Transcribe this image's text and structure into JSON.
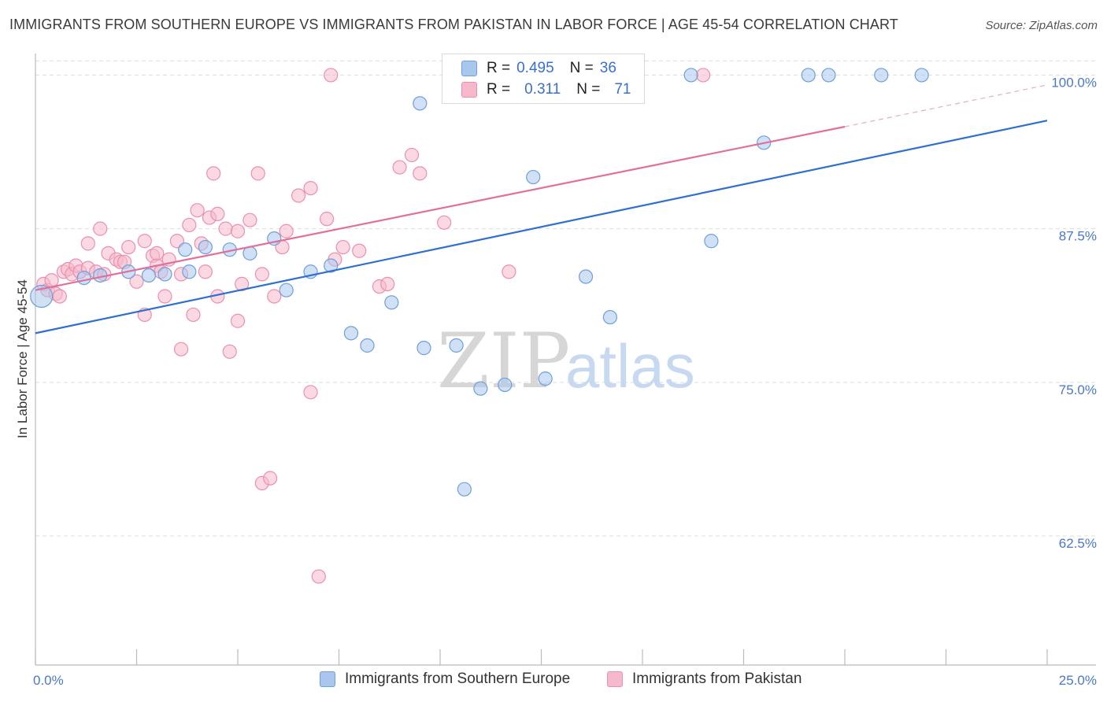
{
  "title": "IMMIGRANTS FROM SOUTHERN EUROPE VS IMMIGRANTS FROM PAKISTAN IN LABOR FORCE | AGE 45-54 CORRELATION CHART",
  "source": "Source: ZipAtlas.com",
  "watermark": {
    "zip": "ZIP",
    "atlas": "atlas"
  },
  "legend": {
    "rows": [
      {
        "r_label": "R =",
        "r_value": "0.495",
        "n_label": "N =",
        "n_value": "36"
      },
      {
        "r_label": "R =",
        "r_value": "0.311",
        "n_label": "N =",
        "n_value": "71"
      }
    ]
  },
  "colors": {
    "blue_fill": "#a9c6ec",
    "blue_stroke": "#6f9fdc",
    "blue_line": "#2f6fce",
    "pink_fill": "#f6b9cc",
    "pink_stroke": "#ec8fae",
    "pink_line": "#e0709a",
    "tick_text": "#4a78c8",
    "grid": "#dddddd"
  },
  "chart_data": {
    "type": "scatter",
    "title": "IMMIGRANTS FROM SOUTHERN EUROPE VS IMMIGRANTS FROM PAKISTAN IN LABOR FORCE | AGE 45-54 CORRELATION CHART",
    "xlabel": "",
    "ylabel": "In Labor Force | Age 45-54",
    "xlim": [
      0,
      25
    ],
    "ylim": [
      52,
      101.5
    ],
    "x_tick_labels": [
      "0.0%",
      "25.0%"
    ],
    "y_ticks": [
      62.5,
      75.0,
      87.5,
      100.0
    ],
    "y_tick_labels": [
      "62.5%",
      "75.0%",
      "87.5%",
      "100.0%"
    ],
    "grid": true,
    "legend_position": "bottom",
    "series": [
      {
        "name": "Immigrants from Southern Europe",
        "color": "blue",
        "r": 0.495,
        "n": 36,
        "trend": {
          "x": [
            0,
            25
          ],
          "y": [
            79.0,
            96.3
          ]
        },
        "points": [
          [
            0.15,
            82.0
          ],
          [
            1.2,
            83.5
          ],
          [
            1.6,
            83.7
          ],
          [
            2.3,
            84.0
          ],
          [
            2.8,
            83.7
          ],
          [
            3.2,
            83.8
          ],
          [
            3.8,
            84.0
          ],
          [
            3.7,
            85.8
          ],
          [
            4.2,
            86.0
          ],
          [
            4.8,
            85.8
          ],
          [
            5.3,
            85.5
          ],
          [
            5.9,
            86.7
          ],
          [
            6.2,
            82.5
          ],
          [
            6.8,
            84.0
          ],
          [
            7.3,
            84.5
          ],
          [
            7.8,
            79.0
          ],
          [
            8.2,
            78.0
          ],
          [
            8.8,
            81.5
          ],
          [
            9.6,
            77.8
          ],
          [
            10.4,
            78.0
          ],
          [
            11.0,
            74.5
          ],
          [
            11.6,
            74.8
          ],
          [
            12.6,
            75.3
          ],
          [
            10.6,
            66.3
          ],
          [
            9.5,
            97.7
          ],
          [
            12.3,
            91.7
          ],
          [
            13.6,
            83.6
          ],
          [
            14.2,
            80.3
          ],
          [
            14.2,
            100.0
          ],
          [
            16.2,
            100.0
          ],
          [
            16.7,
            86.5
          ],
          [
            18.0,
            94.5
          ],
          [
            19.1,
            100.0
          ],
          [
            19.6,
            100.0
          ],
          [
            20.9,
            100.0
          ],
          [
            21.9,
            100.0
          ]
        ]
      },
      {
        "name": "Immigrants from Pakistan",
        "color": "pink",
        "r": 0.311,
        "n": 71,
        "trend": {
          "x": [
            0,
            20
          ],
          "y": [
            82.5,
            95.8
          ]
        },
        "trend_extension": {
          "x": [
            20,
            25
          ],
          "y": [
            95.8,
            99.2
          ]
        },
        "points": [
          [
            0.2,
            83.0
          ],
          [
            0.3,
            82.5
          ],
          [
            0.5,
            82.2
          ],
          [
            0.7,
            84.0
          ],
          [
            0.8,
            84.2
          ],
          [
            0.9,
            83.8
          ],
          [
            1.0,
            84.5
          ],
          [
            1.1,
            84.0
          ],
          [
            1.3,
            84.3
          ],
          [
            1.5,
            84.0
          ],
          [
            1.7,
            83.8
          ],
          [
            1.8,
            85.5
          ],
          [
            2.0,
            85.0
          ],
          [
            2.1,
            84.8
          ],
          [
            2.3,
            86.0
          ],
          [
            2.5,
            83.2
          ],
          [
            2.7,
            86.5
          ],
          [
            2.9,
            85.3
          ],
          [
            3.0,
            84.5
          ],
          [
            3.1,
            84.0
          ],
          [
            3.3,
            85.0
          ],
          [
            3.5,
            86.5
          ],
          [
            3.6,
            83.8
          ],
          [
            3.8,
            87.8
          ],
          [
            4.0,
            89.0
          ],
          [
            4.1,
            86.3
          ],
          [
            4.3,
            88.4
          ],
          [
            4.5,
            88.7
          ],
          [
            4.7,
            87.5
          ],
          [
            5.0,
            87.3
          ],
          [
            5.3,
            88.2
          ],
          [
            5.6,
            83.8
          ],
          [
            5.9,
            82.0
          ],
          [
            6.2,
            87.3
          ],
          [
            6.5,
            90.2
          ],
          [
            6.8,
            90.8
          ],
          [
            7.2,
            88.3
          ],
          [
            7.6,
            86.0
          ],
          [
            8.0,
            85.7
          ],
          [
            8.5,
            82.8
          ],
          [
            9.0,
            92.5
          ],
          [
            9.3,
            93.5
          ],
          [
            9.5,
            92.0
          ],
          [
            10.1,
            88.0
          ],
          [
            3.2,
            82.0
          ],
          [
            3.9,
            80.5
          ],
          [
            4.5,
            82.0
          ],
          [
            5.0,
            80.0
          ],
          [
            3.6,
            77.7
          ],
          [
            2.7,
            80.5
          ],
          [
            4.8,
            77.5
          ],
          [
            6.8,
            74.2
          ],
          [
            5.6,
            66.8
          ],
          [
            5.8,
            67.2
          ],
          [
            7.0,
            59.2
          ],
          [
            7.3,
            100.0
          ],
          [
            16.5,
            100.0
          ],
          [
            4.4,
            92.0
          ],
          [
            5.5,
            92.0
          ],
          [
            1.3,
            86.3
          ],
          [
            1.6,
            87.5
          ],
          [
            0.4,
            83.3
          ],
          [
            0.6,
            82.0
          ],
          [
            2.2,
            84.8
          ],
          [
            3.0,
            85.5
          ],
          [
            4.2,
            84.0
          ],
          [
            5.1,
            83.0
          ],
          [
            7.4,
            85.0
          ],
          [
            8.7,
            83.0
          ],
          [
            11.7,
            84.0
          ],
          [
            6.1,
            86.0
          ]
        ]
      }
    ]
  }
}
